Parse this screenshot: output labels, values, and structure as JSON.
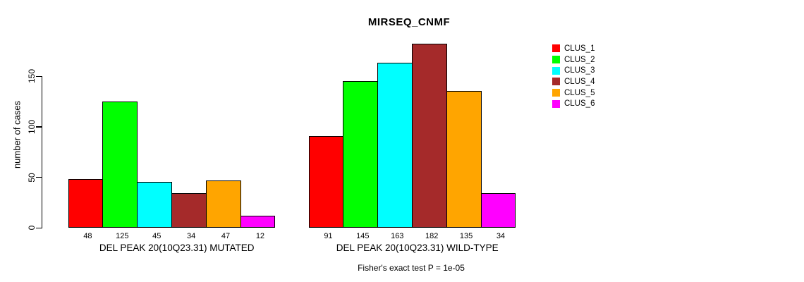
{
  "chart_data": {
    "type": "bar",
    "title": "MIRSEQ_CNMF",
    "ylabel": "number of cases",
    "footer": "Fisher's exact test P = 1e-05",
    "ylim": [
      0,
      182
    ],
    "yticks": [
      0,
      50,
      100,
      150
    ],
    "grid": false,
    "legend_position": "top-right",
    "series_colors": [
      "#FF0000",
      "#00FF00",
      "#00FFFF",
      "#A52A2A",
      "#FFA500",
      "#FF00FF"
    ],
    "legend": [
      {
        "label": "CLUS_1",
        "color": "#FF0000"
      },
      {
        "label": "CLUS_2",
        "color": "#00FF00"
      },
      {
        "label": "CLUS_3",
        "color": "#00FFFF"
      },
      {
        "label": "CLUS_4",
        "color": "#A52A2A"
      },
      {
        "label": "CLUS_5",
        "color": "#FFA500"
      },
      {
        "label": "CLUS_6",
        "color": "#FF00FF"
      }
    ],
    "groups": [
      {
        "label": "DEL PEAK 20(10Q23.31) MUTATED",
        "categories": [
          "CLUS_1",
          "CLUS_2",
          "CLUS_3",
          "CLUS_4",
          "CLUS_5",
          "CLUS_6"
        ],
        "values": [
          48,
          125,
          45,
          34,
          47,
          12
        ]
      },
      {
        "label": "DEL PEAK 20(10Q23.31) WILD-TYPE",
        "categories": [
          "CLUS_1",
          "CLUS_2",
          "CLUS_3",
          "CLUS_4",
          "CLUS_5",
          "CLUS_6"
        ],
        "values": [
          91,
          145,
          163,
          182,
          135,
          34
        ]
      }
    ]
  }
}
